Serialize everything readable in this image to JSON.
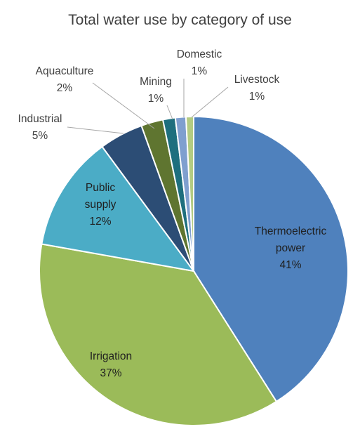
{
  "chart_data": {
    "type": "pie",
    "title": "Total water use by category of use",
    "start_angle_deg": 0,
    "direction": "clockwise",
    "slices": [
      {
        "label_lines": [
          "Thermoelectric",
          "power"
        ],
        "pct_label": "41%",
        "value": 41.0,
        "color": "#4f81bd"
      },
      {
        "label_lines": [
          "Irrigation"
        ],
        "pct_label": "37%",
        "value": 36.8,
        "color": "#9bbb59"
      },
      {
        "label_lines": [
          "Public",
          "supply"
        ],
        "pct_label": "12%",
        "value": 12.1,
        "color": "#4bacc6"
      },
      {
        "label_lines": [
          "Industrial"
        ],
        "pct_label": "5%",
        "value": 4.6,
        "color": "#2c4d75"
      },
      {
        "label_lines": [
          "Aquaculture"
        ],
        "pct_label": "2%",
        "value": 2.3,
        "color": "#5f7530"
      },
      {
        "label_lines": [
          "Mining"
        ],
        "pct_label": "1%",
        "value": 1.3,
        "color": "#1e6f7e"
      },
      {
        "label_lines": [
          "Domestic"
        ],
        "pct_label": "1%",
        "value": 1.1,
        "color": "#7f9fcf"
      },
      {
        "label_lines": [
          "Livestock"
        ],
        "pct_label": "1%",
        "value": 0.8,
        "color": "#b3cb82"
      }
    ],
    "legend": "none"
  }
}
